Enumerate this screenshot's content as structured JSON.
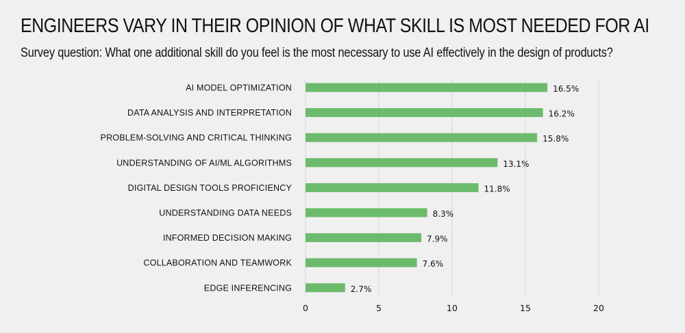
{
  "title": "ENGINEERS VARY IN THEIR OPINION OF WHAT SKILL IS MOST NEEDED FOR AI",
  "subtitle": "Survey question: What one additional skill do you feel is the most necessary to use AI effectively in the design of products?",
  "colors": {
    "bar": "#6cbb6c",
    "grid": "#d4d4d4",
    "background": "#f0f0f0"
  },
  "chart_data": {
    "type": "bar",
    "orientation": "horizontal",
    "categories": [
      "AI MODEL OPTIMIZATION",
      "DATA ANALYSIS AND INTERPRETATION",
      "PROBLEM-SOLVING AND CRITICAL THINKING",
      "UNDERSTANDING OF AI/ML ALGORITHMS",
      "DIGITAL DESIGN TOOLS PROFICIENCY",
      "UNDERSTANDING DATA NEEDS",
      "INFORMED DECISION MAKING",
      "COLLABORATION AND TEAMWORK",
      "EDGE INFERENCING"
    ],
    "values": [
      16.5,
      16.2,
      15.8,
      13.1,
      11.8,
      8.3,
      7.9,
      7.6,
      2.7
    ],
    "value_labels": [
      "16.5%",
      "16.2%",
      "15.8%",
      "13.1%",
      "11.8%",
      "8.3%",
      "7.9%",
      "7.6%",
      "2.7%"
    ],
    "xlim": [
      0,
      20
    ],
    "xticks": [
      0,
      5,
      10,
      15,
      20
    ],
    "grid": true,
    "legend": "none",
    "xlabel": "",
    "ylabel": ""
  }
}
